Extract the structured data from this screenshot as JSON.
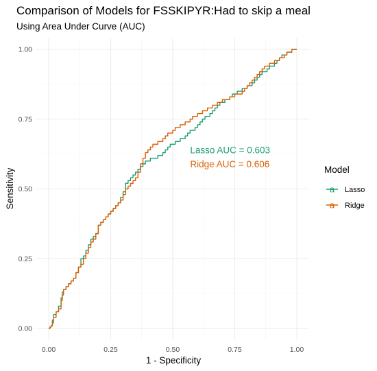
{
  "chart_data": {
    "type": "line",
    "title": "Comparison of Models for FSSKIPYR:Had to skip a meal",
    "subtitle": "Using Area Under Curve (AUC)",
    "xlabel": "1 - Specificity",
    "ylabel": "Sensitivity",
    "xlim": [
      0,
      1
    ],
    "ylim": [
      0,
      1
    ],
    "xticks": [
      0,
      0.25,
      0.5,
      0.75,
      1
    ],
    "yticks": [
      0,
      0.25,
      0.5,
      0.75,
      1
    ],
    "xtick_labels": [
      "0.00",
      "0.25",
      "0.50",
      "0.75",
      "1.00"
    ],
    "ytick_labels": [
      "0.00",
      "0.25",
      "0.50",
      "0.75",
      "1.00"
    ],
    "grid": true,
    "legend": {
      "title": "Model",
      "position": "right",
      "key_glyph": "a",
      "entries": [
        "Lasso",
        "Ridge"
      ]
    },
    "annotations": [
      {
        "text": "Lasso AUC = 0.603",
        "x": 0.57,
        "y": 0.64,
        "color": "#1b9e77"
      },
      {
        "text": "Ridge AUC = 0.606",
        "x": 0.57,
        "y": 0.59,
        "color": "#d95f02"
      }
    ],
    "series": [
      {
        "name": "Lasso",
        "color": "#1b9e77",
        "x": [
          0,
          0.005,
          0.01,
          0.015,
          0.02,
          0.03,
          0.04,
          0.05,
          0.055,
          0.06,
          0.065,
          0.07,
          0.08,
          0.09,
          0.1,
          0.11,
          0.12,
          0.13,
          0.14,
          0.15,
          0.16,
          0.17,
          0.18,
          0.19,
          0.2,
          0.21,
          0.22,
          0.23,
          0.24,
          0.25,
          0.26,
          0.27,
          0.28,
          0.29,
          0.3,
          0.31,
          0.32,
          0.33,
          0.34,
          0.35,
          0.36,
          0.37,
          0.38,
          0.39,
          0.4,
          0.41,
          0.42,
          0.43,
          0.44,
          0.45,
          0.46,
          0.47,
          0.48,
          0.49,
          0.5,
          0.51,
          0.52,
          0.53,
          0.54,
          0.55,
          0.56,
          0.57,
          0.58,
          0.59,
          0.6,
          0.61,
          0.62,
          0.63,
          0.64,
          0.65,
          0.66,
          0.67,
          0.68,
          0.69,
          0.7,
          0.71,
          0.72,
          0.73,
          0.74,
          0.75,
          0.76,
          0.77,
          0.78,
          0.79,
          0.8,
          0.81,
          0.82,
          0.83,
          0.84,
          0.85,
          0.86,
          0.87,
          0.88,
          0.89,
          0.9,
          0.91,
          0.92,
          0.93,
          0.94,
          0.95,
          0.96,
          0.97,
          0.98,
          0.99,
          1
        ],
        "y": [
          0,
          0.005,
          0.01,
          0.03,
          0.05,
          0.06,
          0.08,
          0.11,
          0.13,
          0.14,
          0.14,
          0.15,
          0.16,
          0.17,
          0.18,
          0.2,
          0.22,
          0.25,
          0.26,
          0.28,
          0.3,
          0.32,
          0.33,
          0.34,
          0.37,
          0.38,
          0.39,
          0.4,
          0.41,
          0.42,
          0.43,
          0.44,
          0.45,
          0.47,
          0.49,
          0.52,
          0.53,
          0.54,
          0.55,
          0.56,
          0.57,
          0.58,
          0.59,
          0.6,
          0.6,
          0.61,
          0.61,
          0.61,
          0.62,
          0.62,
          0.63,
          0.64,
          0.65,
          0.66,
          0.66,
          0.67,
          0.67,
          0.68,
          0.68,
          0.69,
          0.7,
          0.71,
          0.71,
          0.72,
          0.73,
          0.74,
          0.75,
          0.76,
          0.76,
          0.77,
          0.78,
          0.79,
          0.8,
          0.81,
          0.81,
          0.82,
          0.82,
          0.83,
          0.84,
          0.84,
          0.85,
          0.85,
          0.86,
          0.86,
          0.87,
          0.87,
          0.88,
          0.89,
          0.9,
          0.91,
          0.92,
          0.92,
          0.93,
          0.94,
          0.94,
          0.95,
          0.96,
          0.97,
          0.98,
          0.98,
          0.99,
          0.99,
          1,
          1,
          1
        ]
      },
      {
        "name": "Ridge",
        "color": "#d95f02",
        "x": [
          0,
          0.005,
          0.01,
          0.015,
          0.02,
          0.03,
          0.04,
          0.05,
          0.055,
          0.06,
          0.065,
          0.07,
          0.08,
          0.09,
          0.1,
          0.11,
          0.12,
          0.13,
          0.14,
          0.15,
          0.16,
          0.17,
          0.18,
          0.19,
          0.2,
          0.21,
          0.22,
          0.23,
          0.24,
          0.25,
          0.26,
          0.27,
          0.28,
          0.29,
          0.3,
          0.31,
          0.32,
          0.33,
          0.34,
          0.35,
          0.36,
          0.37,
          0.38,
          0.39,
          0.4,
          0.41,
          0.42,
          0.43,
          0.44,
          0.45,
          0.46,
          0.47,
          0.48,
          0.49,
          0.5,
          0.51,
          0.52,
          0.53,
          0.54,
          0.55,
          0.56,
          0.57,
          0.58,
          0.59,
          0.6,
          0.61,
          0.62,
          0.63,
          0.64,
          0.65,
          0.66,
          0.67,
          0.68,
          0.69,
          0.7,
          0.71,
          0.72,
          0.73,
          0.74,
          0.75,
          0.76,
          0.77,
          0.78,
          0.79,
          0.8,
          0.81,
          0.82,
          0.83,
          0.84,
          0.85,
          0.86,
          0.87,
          0.88,
          0.89,
          0.9,
          0.91,
          0.92,
          0.93,
          0.94,
          0.95,
          0.96,
          0.97,
          0.98,
          0.99,
          1
        ],
        "y": [
          0,
          0.005,
          0.01,
          0.02,
          0.04,
          0.06,
          0.07,
          0.1,
          0.12,
          0.14,
          0.14,
          0.15,
          0.16,
          0.17,
          0.18,
          0.2,
          0.22,
          0.23,
          0.25,
          0.27,
          0.29,
          0.31,
          0.32,
          0.34,
          0.37,
          0.38,
          0.39,
          0.4,
          0.41,
          0.42,
          0.43,
          0.44,
          0.45,
          0.46,
          0.48,
          0.5,
          0.51,
          0.52,
          0.53,
          0.54,
          0.56,
          0.59,
          0.61,
          0.63,
          0.64,
          0.65,
          0.66,
          0.66,
          0.67,
          0.67,
          0.68,
          0.69,
          0.7,
          0.7,
          0.71,
          0.72,
          0.72,
          0.73,
          0.73,
          0.74,
          0.74,
          0.75,
          0.76,
          0.76,
          0.77,
          0.77,
          0.78,
          0.78,
          0.79,
          0.79,
          0.8,
          0.8,
          0.81,
          0.81,
          0.82,
          0.82,
          0.82,
          0.83,
          0.83,
          0.84,
          0.84,
          0.84,
          0.85,
          0.86,
          0.87,
          0.88,
          0.89,
          0.9,
          0.91,
          0.92,
          0.93,
          0.94,
          0.94,
          0.95,
          0.95,
          0.96,
          0.96,
          0.97,
          0.97,
          0.98,
          0.99,
          0.99,
          1,
          1,
          1
        ]
      }
    ]
  }
}
